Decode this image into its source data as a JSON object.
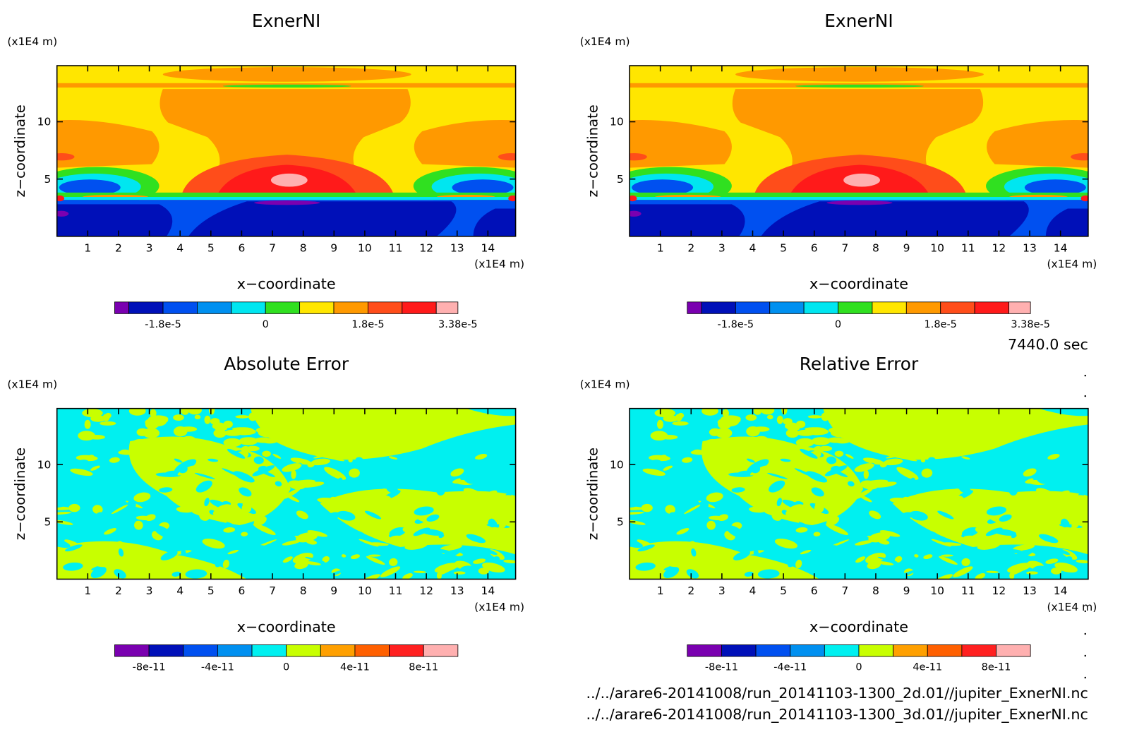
{
  "chart_data": [
    {
      "type": "contour",
      "title": "ExnerNI",
      "x_label": "x−coordinate",
      "y_label": "z−coordinate",
      "x_unit": "(x1E4 m)",
      "y_unit": "(x1E4 m)",
      "xlim": [
        0,
        14.9
      ],
      "ylim": [
        0,
        14.9
      ],
      "xticks": [
        1,
        2,
        3,
        4,
        5,
        6,
        7,
        8,
        9,
        10,
        11,
        12,
        13,
        14
      ],
      "yticks": [
        5,
        10
      ],
      "colorbar": {
        "colors": [
          "#7a00b0",
          "#0010b8",
          "#0050f0",
          "#0090f0",
          "#00e6f0",
          "#30e020",
          "#ffe600",
          "#ff9900",
          "#ff4d1a",
          "#ff1a1a",
          "#ffb0b0"
        ],
        "levels": [
          -2.65e-05,
          -2.4e-05,
          -1.8e-05,
          -1.2e-05,
          -6e-06,
          0,
          6e-06,
          1.2e-05,
          1.8e-05,
          2.4e-05,
          3e-05,
          3.38e-05
        ],
        "ticks": [
          {
            "value": -1.8e-05,
            "label": "-1.8e-5"
          },
          0,
          {
            "value": 1.8e-05,
            "label": "1.8e-5"
          },
          {
            "value": 3.38e-05,
            "label": "3.38e-5"
          }
        ]
      }
    },
    {
      "type": "contour",
      "title": "ExnerNI",
      "x_label": "x−coordinate",
      "y_label": "z−coordinate",
      "x_unit": "(x1E4 m)",
      "y_unit": "(x1E4 m)",
      "xlim": [
        0,
        14.9
      ],
      "ylim": [
        0,
        14.9
      ],
      "xticks": [
        1,
        2,
        3,
        4,
        5,
        6,
        7,
        8,
        9,
        10,
        11,
        12,
        13,
        14
      ],
      "yticks": [
        5,
        10
      ],
      "colorbar": {
        "colors": [
          "#7a00b0",
          "#0010b8",
          "#0050f0",
          "#0090f0",
          "#00e6f0",
          "#30e020",
          "#ffe600",
          "#ff9900",
          "#ff4d1a",
          "#ff1a1a",
          "#ffb0b0"
        ],
        "levels": [
          -2.65e-05,
          -2.4e-05,
          -1.8e-05,
          -1.2e-05,
          -6e-06,
          0,
          6e-06,
          1.2e-05,
          1.8e-05,
          2.4e-05,
          3e-05,
          3.38e-05
        ],
        "ticks": [
          {
            "value": -1.8e-05,
            "label": "-1.8e-5"
          },
          0,
          {
            "value": 1.8e-05,
            "label": "1.8e-5"
          },
          {
            "value": 3.38e-05,
            "label": "3.38e-5"
          }
        ]
      }
    },
    {
      "type": "contour",
      "title": "Absolute Error",
      "x_label": "x−coordinate",
      "y_label": "z−coordinate",
      "x_unit": "(x1E4 m)",
      "y_unit": "(x1E4 m)",
      "xlim": [
        0,
        14.9
      ],
      "ylim": [
        0,
        14.9
      ],
      "xticks": [
        1,
        2,
        3,
        4,
        5,
        6,
        7,
        8,
        9,
        10,
        11,
        12,
        13,
        14
      ],
      "yticks": [
        5,
        10
      ],
      "colorbar": {
        "colors": [
          "#7a00b0",
          "#0010b8",
          "#0050f0",
          "#0090f0",
          "#00f0f0",
          "#c8ff00",
          "#ffa000",
          "#ff6000",
          "#ff2020",
          "#ffb0b0"
        ],
        "levels": [
          -1e-10,
          -8e-11,
          -6e-11,
          -4e-11,
          -2e-11,
          0,
          2e-11,
          4e-11,
          6e-11,
          8e-11,
          1e-10
        ],
        "ticks": [
          -8e-11,
          -4e-11,
          0,
          4e-11,
          8e-11
        ]
      }
    },
    {
      "type": "contour",
      "title": "Relative Error",
      "x_label": "x−coordinate",
      "y_label": "z−coordinate",
      "x_unit": "(x1E4 m)",
      "y_unit": "(x1E4 m)",
      "xlim": [
        0,
        14.9
      ],
      "ylim": [
        0,
        14.9
      ],
      "xticks": [
        1,
        2,
        3,
        4,
        5,
        6,
        7,
        8,
        9,
        10,
        11,
        12,
        13,
        14
      ],
      "yticks": [
        5,
        10
      ],
      "colorbar": {
        "colors": [
          "#7a00b0",
          "#0010b8",
          "#0050f0",
          "#0090f0",
          "#00f0f0",
          "#c8ff00",
          "#ffa000",
          "#ff6000",
          "#ff2020",
          "#ffb0b0"
        ],
        "levels": [
          -1e-10,
          -8e-11,
          -6e-11,
          -4e-11,
          -2e-11,
          0,
          2e-11,
          4e-11,
          6e-11,
          8e-11,
          1e-10
        ],
        "ticks": [
          -8e-11,
          -4e-11,
          0,
          4e-11,
          8e-11
        ]
      }
    }
  ],
  "time": "7440.0 sec",
  "files": [
    "../../arare6-20141008/run_20141103-1300_2d.01//jupiter_ExnerNI.nc",
    "../../arare6-20141008/run_20141103-1300_3d.01//jupiter_ExnerNI.nc"
  ]
}
